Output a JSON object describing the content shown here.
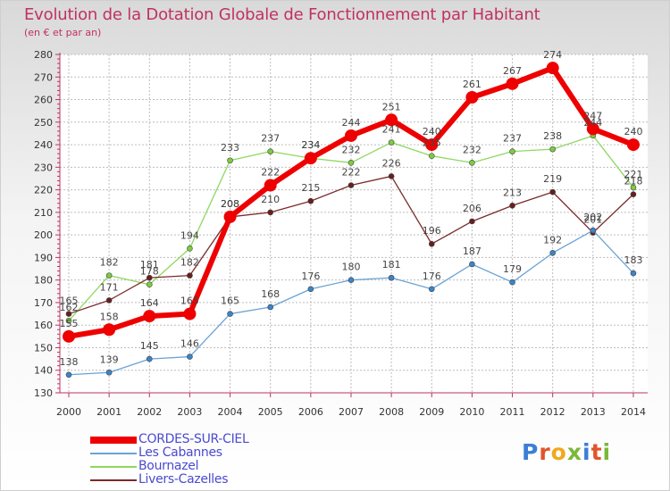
{
  "title": "Evolution de la Dotation Globale de Fonctionnement par Habitant",
  "subtitle": "(en € et par an)",
  "logo": {
    "text": "Proxiti",
    "letter_colors": [
      "#3b7fd4",
      "#e0552b",
      "#f2a81c",
      "#7ab83a",
      "#3b7fd4",
      "#e0552b",
      "#7ab83a"
    ]
  },
  "chart_data": {
    "type": "line",
    "x": [
      "2000",
      "2001",
      "2002",
      "2003",
      "2004",
      "2005",
      "2006",
      "2007",
      "2008",
      "2009",
      "2010",
      "2011",
      "2012",
      "2013",
      "2014"
    ],
    "ylim": [
      130,
      280
    ],
    "yticks": [
      130,
      140,
      150,
      160,
      170,
      180,
      190,
      200,
      210,
      220,
      230,
      240,
      250,
      260,
      270,
      280
    ],
    "grid": true,
    "legend_position": "bottom-left",
    "series": [
      {
        "name": "Bournazel",
        "color": "#8ed860",
        "marker": "#7ccc42",
        "width": 1.3,
        "values": [
          162,
          182,
          178,
          194,
          233,
          237,
          234,
          232,
          241,
          235,
          232,
          237,
          238,
          244,
          221
        ]
      },
      {
        "name": "Livers-Cazelles",
        "color": "#7a2a2a",
        "marker": "#6a1e1e",
        "width": 1.3,
        "values": [
          165,
          171,
          181,
          182,
          208,
          210,
          215,
          222,
          226,
          196,
          206,
          213,
          219,
          201,
          218
        ]
      },
      {
        "name": "Les Cabannes",
        "color": "#6aa3d6",
        "marker": "#3c84c8",
        "width": 1.3,
        "values": [
          138,
          139,
          145,
          146,
          165,
          168,
          176,
          180,
          181,
          176,
          187,
          179,
          192,
          202,
          183
        ]
      },
      {
        "name": "CORDES-SUR-CIEL",
        "color": "#ee0000",
        "marker": "#ee0000",
        "width": 6,
        "values": [
          155,
          158,
          164,
          165,
          208,
          222,
          234,
          244,
          251,
          240,
          261,
          267,
          274,
          247,
          240
        ]
      }
    ],
    "legend_order": [
      "CORDES-SUR-CIEL",
      "Les Cabannes",
      "Bournazel",
      "Livers-Cazelles"
    ]
  }
}
